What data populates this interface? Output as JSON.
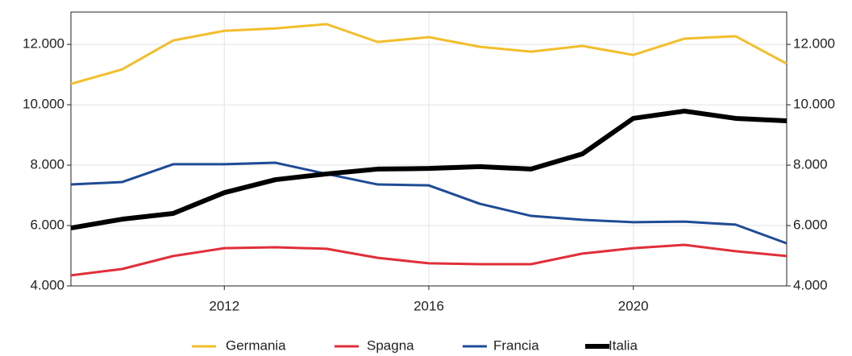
{
  "chart_data": {
    "type": "line",
    "x": [
      2009,
      2010,
      2011,
      2012,
      2013,
      2014,
      2015,
      2016,
      2017,
      2018,
      2019,
      2020,
      2021,
      2022,
      2023
    ],
    "series": [
      {
        "name": "Germania",
        "color": "#f2be2c",
        "width": 3,
        "values": [
          10690,
          11170,
          12130,
          12450,
          12530,
          12670,
          12080,
          12240,
          11920,
          11760,
          11950,
          11650,
          12190,
          12270,
          11360
        ]
      },
      {
        "name": "Spagna",
        "color": "#e02f3a",
        "width": 3,
        "values": [
          4350,
          4560,
          4990,
          5250,
          5280,
          5230,
          4930,
          4750,
          4720,
          4720,
          5070,
          5250,
          5360,
          5150,
          4990
        ]
      },
      {
        "name": "Francia",
        "color": "#1f4b96",
        "width": 3,
        "values": [
          7360,
          7440,
          8030,
          8030,
          8080,
          7710,
          7360,
          7330,
          6720,
          6320,
          6190,
          6110,
          6130,
          6030,
          5410
        ]
      },
      {
        "name": "Italia",
        "color": "#000000",
        "width": 6,
        "values": [
          5920,
          6210,
          6400,
          7090,
          7520,
          7710,
          7870,
          7890,
          7950,
          7870,
          8370,
          9550,
          9790,
          9550,
          9470
        ]
      }
    ],
    "xlim": [
      2009,
      2023
    ],
    "xticks": [
      2012,
      2016,
      2020
    ],
    "ylim": [
      4000,
      13070
    ],
    "yticks": [
      {
        "value": 4000,
        "label": "4.000"
      },
      {
        "value": 6000,
        "label": "6.000"
      },
      {
        "value": 8000,
        "label": "8.000"
      },
      {
        "value": 10000,
        "label": "10.000"
      },
      {
        "value": 12000,
        "label": "12.000"
      }
    ],
    "y2lim": [
      4000,
      13070
    ],
    "y2ticks": [
      {
        "value": 4000,
        "label": "4.000"
      },
      {
        "value": 6000,
        "label": "6.000"
      },
      {
        "value": 8000,
        "label": "8.000"
      },
      {
        "value": 10000,
        "label": "10.000"
      },
      {
        "value": 12000,
        "label": "12.000"
      }
    ],
    "grid": true,
    "legend": "bottom"
  }
}
